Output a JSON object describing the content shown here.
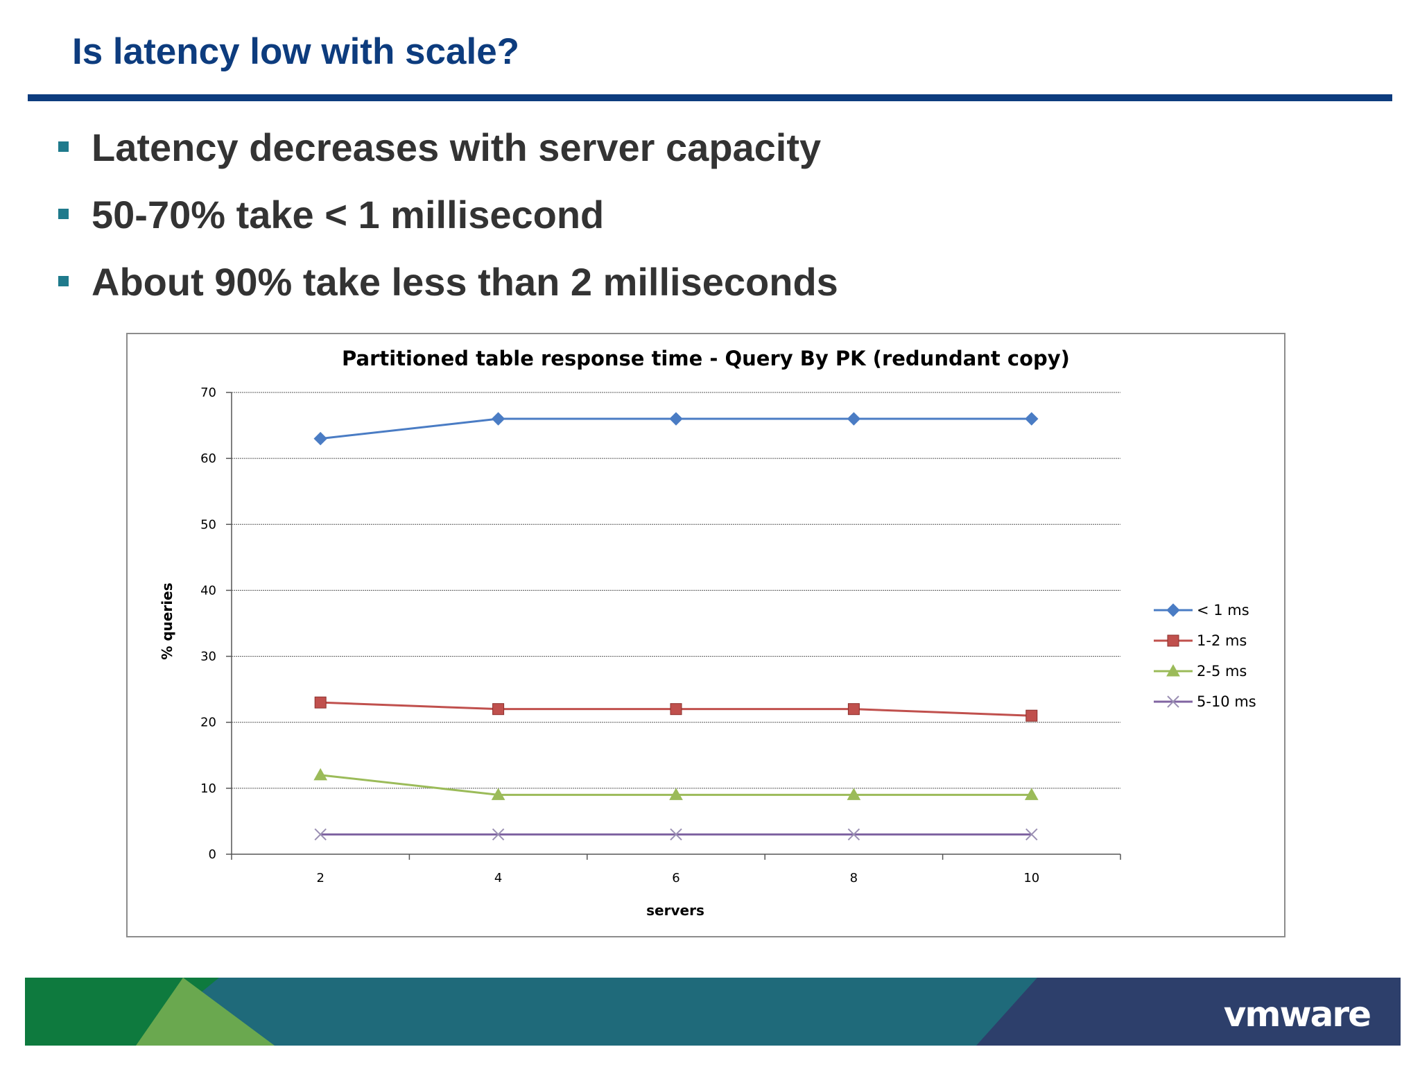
{
  "slide": {
    "title": "Is latency low with scale?",
    "bullets": [
      "Latency decreases with server capacity",
      "50-70% take < 1 millisecond",
      "About 90% take less than 2 milliseconds"
    ]
  },
  "colors": {
    "title": "#0d3c7e",
    "bullet_marker": "#1f7a8c",
    "footer_green": "#0e7a3e",
    "footer_light_green": "#6aa84f",
    "footer_teal": "#1f6a7a",
    "footer_navy": "#2d3f6b"
  },
  "footer": {
    "logo_text": "vmware"
  },
  "chart_data": {
    "type": "line",
    "title": "Partitioned table response time - Query By PK (redundant copy)",
    "xlabel": "servers",
    "ylabel": "% queries",
    "categories": [
      "2",
      "4",
      "6",
      "8",
      "10"
    ],
    "ylim": [
      0,
      70
    ],
    "yticks": [
      0,
      10,
      20,
      30,
      40,
      50,
      60,
      70
    ],
    "grid": true,
    "legend_position": "right",
    "series": [
      {
        "name": "< 1 ms",
        "values": [
          63,
          66,
          66,
          66,
          66
        ],
        "color": "#4a7cc4",
        "marker": "diamond"
      },
      {
        "name": "1-2 ms",
        "values": [
          23,
          22,
          22,
          22,
          21
        ],
        "color": "#c0504d",
        "marker": "square"
      },
      {
        "name": "2-5 ms",
        "values": [
          12,
          9,
          9,
          9,
          9
        ],
        "color": "#9bbb59",
        "marker": "triangle"
      },
      {
        "name": "5-10 ms",
        "values": [
          3,
          3,
          3,
          3,
          3
        ],
        "color": "#8064a2",
        "marker": "x"
      }
    ]
  }
}
